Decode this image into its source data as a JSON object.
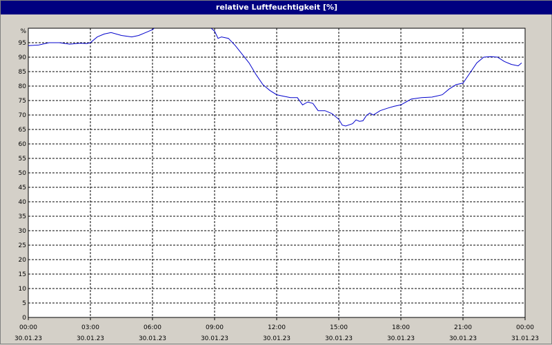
{
  "window": {
    "title": "relative Luftfeuchtigkeit [%]"
  },
  "colors": {
    "line": "#0000cc",
    "plot_bg": "#ffffff",
    "frame_bg": "#d4d0c8",
    "title_bg": "#000080"
  },
  "chart_data": {
    "type": "line",
    "title": "relative Luftfeuchtigkeit [%]",
    "y_unit_label": "%",
    "ylim": [
      0,
      100
    ],
    "xlim": [
      "00:00 30.01.23",
      "00:00 31.01.23"
    ],
    "grid": true,
    "y_ticks": [
      "0",
      "5",
      "10",
      "15",
      "20",
      "25",
      "30",
      "35",
      "40",
      "45",
      "50",
      "55",
      "60",
      "65",
      "70",
      "75",
      "80",
      "85",
      "90",
      "95"
    ],
    "x_ticks": [
      {
        "time": "00:00",
        "date": "30.01.23"
      },
      {
        "time": "03:00",
        "date": "30.01.23"
      },
      {
        "time": "06:00",
        "date": "30.01.23"
      },
      {
        "time": "09:00",
        "date": "30.01.23"
      },
      {
        "time": "12:00",
        "date": "30.01.23"
      },
      {
        "time": "15:00",
        "date": "30.01.23"
      },
      {
        "time": "18:00",
        "date": "30.01.23"
      },
      {
        "time": "21:00",
        "date": "30.01.23"
      },
      {
        "time": "00:00",
        "date": "31.01.23"
      }
    ],
    "series": [
      {
        "segments": [
          {
            "x": [
              "00:00",
              "00:30",
              "01:00",
              "01:30",
              "02:00",
              "02:30",
              "02:50",
              "03:00",
              "03:20",
              "03:40",
              "04:00",
              "04:30",
              "05:00",
              "05:20",
              "05:40",
              "06:00",
              "06:05"
            ],
            "y": [
              94,
              94.2,
              95,
              95,
              94.5,
              94.8,
              94.7,
              95,
              97,
              98,
              98.5,
              97.5,
              97,
              97.5,
              98.5,
              99.5,
              100
            ]
          },
          {
            "x": [
              "08:50",
              "09:00",
              "09:10",
              "09:20",
              "09:40",
              "10:00",
              "10:20",
              "10:40",
              "11:00",
              "11:20",
              "11:40",
              "12:00",
              "12:20",
              "12:40",
              "13:00",
              "13:15",
              "13:30",
              "13:45",
              "14:00",
              "14:20",
              "14:40",
              "15:00",
              "15:10",
              "15:20",
              "15:40",
              "15:50",
              "16:00",
              "16:10",
              "16:20",
              "16:30",
              "16:40",
              "17:00",
              "17:20",
              "17:40",
              "18:00",
              "18:30",
              "19:00",
              "19:30",
              "20:00",
              "20:20",
              "20:40",
              "21:00",
              "21:20",
              "21:40",
              "22:00",
              "22:20",
              "22:40",
              "23:00",
              "23:20",
              "23:40",
              "23:50"
            ],
            "y": [
              100,
              99,
              96.5,
              97,
              96.5,
              94,
              91,
              88,
              84,
              80.5,
              78.5,
              77,
              76.5,
              76,
              76,
              73.5,
              74.5,
              74,
              71.5,
              71.5,
              70.5,
              68.5,
              66.5,
              66.2,
              67,
              68.3,
              67.8,
              68,
              69.8,
              70.7,
              70,
              71.5,
              72.3,
              73,
              73.5,
              75.5,
              76,
              76.2,
              77,
              79,
              80.5,
              81,
              84.5,
              88,
              90,
              90.2,
              90,
              88.5,
              87.5,
              87,
              88
            ]
          }
        ]
      }
    ]
  }
}
